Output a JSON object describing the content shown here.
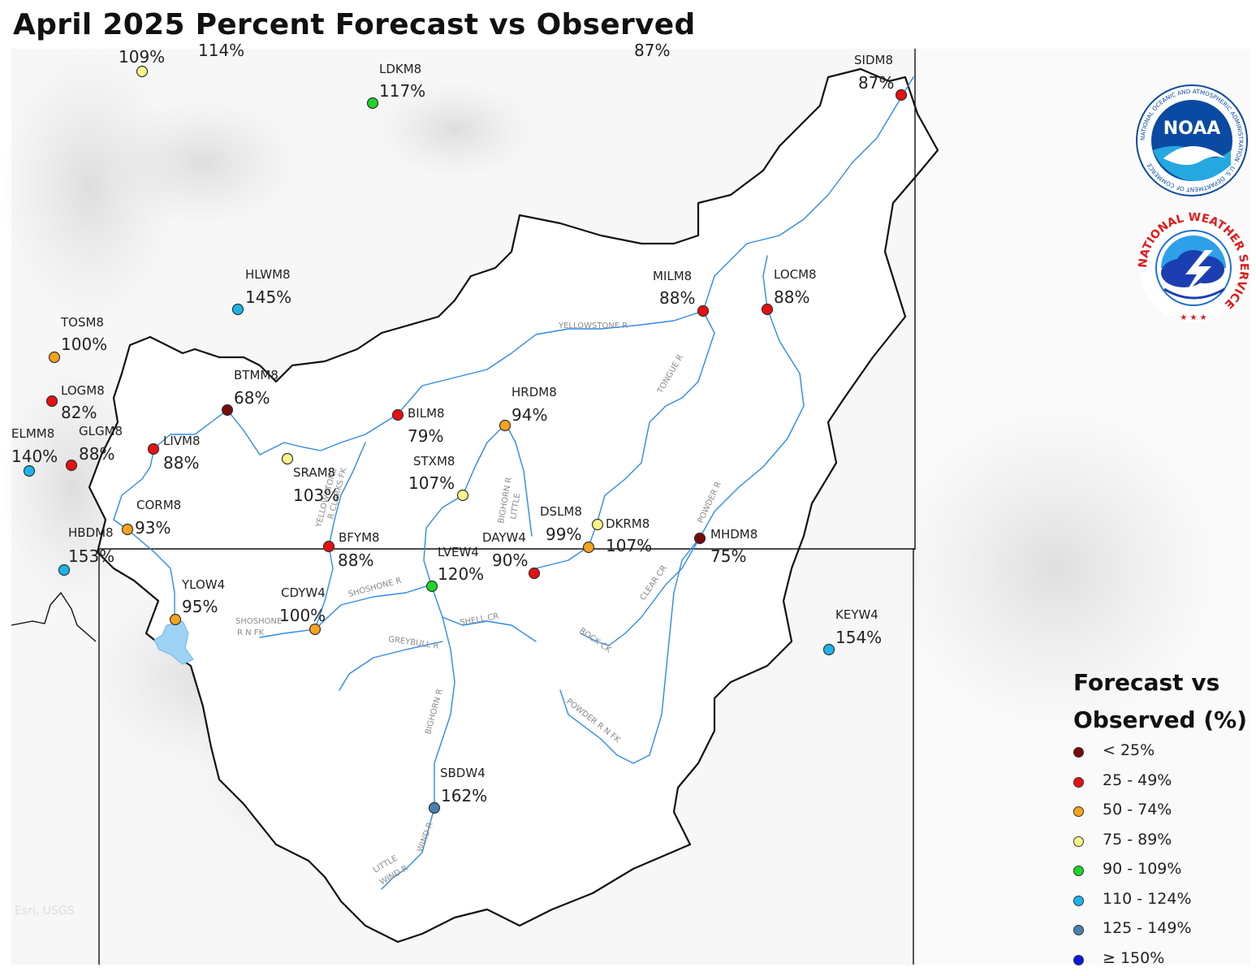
{
  "title": "April 2025 Percent Forecast vs Observed",
  "map_credit": "Esri, USGS",
  "logos": {
    "noaa_text": "NOAA",
    "noaa_ring_text": "NATIONAL OCEANIC AND ATMOSPHERIC ADMINISTRATION · U.S. DEPARTMENT OF COMMERCE",
    "nws_ring_text": "NATIONAL WEATHER SERVICE"
  },
  "legend": {
    "title_line1": "Forecast vs",
    "title_line2": "Observed (%)",
    "items": [
      {
        "label": "< 25%",
        "color": "#7a0a0a"
      },
      {
        "label": "25 - 49%",
        "color": "#e81010"
      },
      {
        "label": "50 - 74%",
        "color": "#f5a21c"
      },
      {
        "label": "75 - 89%",
        "color": "#fbf58a"
      },
      {
        "label": "90 - 109%",
        "color": "#1cd62a"
      },
      {
        "label": "110 - 124%",
        "color": "#1ab4ec"
      },
      {
        "label": "125 - 149%",
        "color": "#4a7fb0"
      },
      {
        "label": "≥ 150%",
        "color": "#0a18e0"
      }
    ]
  },
  "stations": [
    {
      "id": "",
      "value": "109%",
      "color": "#fbf58a"
    },
    {
      "id": "",
      "value": "114%",
      "color": ""
    },
    {
      "id": "",
      "value": "87%",
      "color": ""
    },
    {
      "id": "LDKM8",
      "value": "117%",
      "color": "#1cd62a"
    },
    {
      "id": "SIDM8",
      "value": "87%",
      "color": "#e81010"
    },
    {
      "id": "HLWM8",
      "value": "145%",
      "color": "#1ab4ec"
    },
    {
      "id": "TOSM8",
      "value": "100%",
      "color": "#f5a21c"
    },
    {
      "id": "LOGM8",
      "value": "82%",
      "color": "#e81010"
    },
    {
      "id": "ELMM8",
      "value": "140%",
      "color": "#1ab4ec"
    },
    {
      "id": "GLGM8",
      "value": "88%",
      "color": "#e81010"
    },
    {
      "id": "BTMM8",
      "value": "68%",
      "color": "#7a0a0a"
    },
    {
      "id": "LIVM8",
      "value": "88%",
      "color": "#e81010"
    },
    {
      "id": "BILM8",
      "value": "79%",
      "color": "#e81010"
    },
    {
      "id": "HRDM8",
      "value": "94%",
      "color": "#f5a21c"
    },
    {
      "id": "MILM8",
      "value": "88%",
      "color": "#e81010"
    },
    {
      "id": "LOCM8",
      "value": "88%",
      "color": "#e81010"
    },
    {
      "id": "SRAM8",
      "value": "103%",
      "color": "#fbf58a"
    },
    {
      "id": "STXM8",
      "value": "107%",
      "color": "#fbf58a"
    },
    {
      "id": "CORM8",
      "value": "93%",
      "color": "#f5a21c"
    },
    {
      "id": "HBDM8",
      "value": "153%",
      "color": "#1ab4ec"
    },
    {
      "id": "BFYM8",
      "value": "88%",
      "color": "#e81010"
    },
    {
      "id": "DSLM8",
      "value": "99%",
      "color": "#f5a21c"
    },
    {
      "id": "DKRM8",
      "value": "107%",
      "color": "#fbf58a"
    },
    {
      "id": "MHDM8",
      "value": "75%",
      "color": "#7a0a0a"
    },
    {
      "id": "DAYW4",
      "value": "90%",
      "color": "#e81010"
    },
    {
      "id": "LVEW4",
      "value": "120%",
      "color": "#1cd62a"
    },
    {
      "id": "YLOW4",
      "value": "95%",
      "color": "#f5a21c"
    },
    {
      "id": "CDYW4",
      "value": "100%",
      "color": "#f5a21c"
    },
    {
      "id": "KEYW4",
      "value": "154%",
      "color": "#1ab4ec"
    },
    {
      "id": "SBDW4",
      "value": "162%",
      "color": "#4a7fb0"
    }
  ],
  "rivers": {
    "yellowstone": "YELLOWSTONE R",
    "tongue": "TONGUE R",
    "powder": "POWDER R",
    "bighorn": "BIGHORN R",
    "little_bighorn_1": "LITTLE",
    "little_bighorn_2": "BIGHORN R",
    "clarks_fork_1": "YELLOWSTONE",
    "clarks_fork_2": "R CLARKS FK",
    "shoshone": "SHOSHONE R",
    "shoshone_nfk_1": "SHOSHONE",
    "shoshone_nfk_2": "R N FK",
    "greybull": "GREYBULL R",
    "shell": "SHELL CR",
    "clear": "CLEAR CR",
    "rock": "ROCK CK",
    "powder_nfk": "POWDER R N FK",
    "wind": "WIND R",
    "little_wind_1": "LITTLE",
    "little_wind_2": "WIND R"
  }
}
